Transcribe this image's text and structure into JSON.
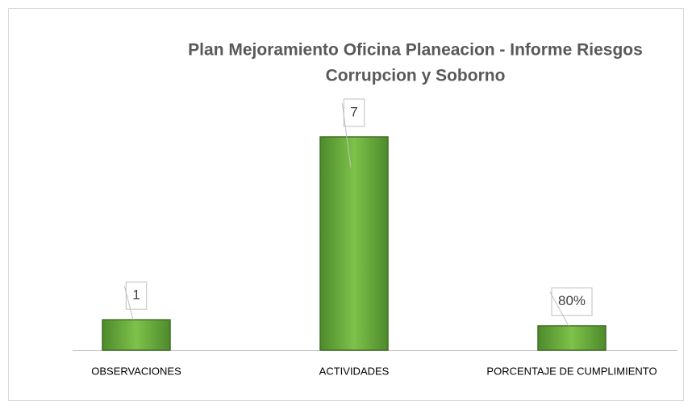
{
  "chart_data": {
    "type": "bar",
    "title": [
      "Plan Mejoramiento Oficina Planeacion - Informe Riesgos",
      "Corrupcion y Soborno"
    ],
    "categories": [
      "OBSERVACIONES",
      "ACTIVIDADES",
      "PORCENTAJE DE CUMPLIMIENTO"
    ],
    "values": [
      1,
      7,
      0.8
    ],
    "value_labels": [
      "1",
      "7",
      "80%"
    ],
    "color": "#70ad47"
  }
}
